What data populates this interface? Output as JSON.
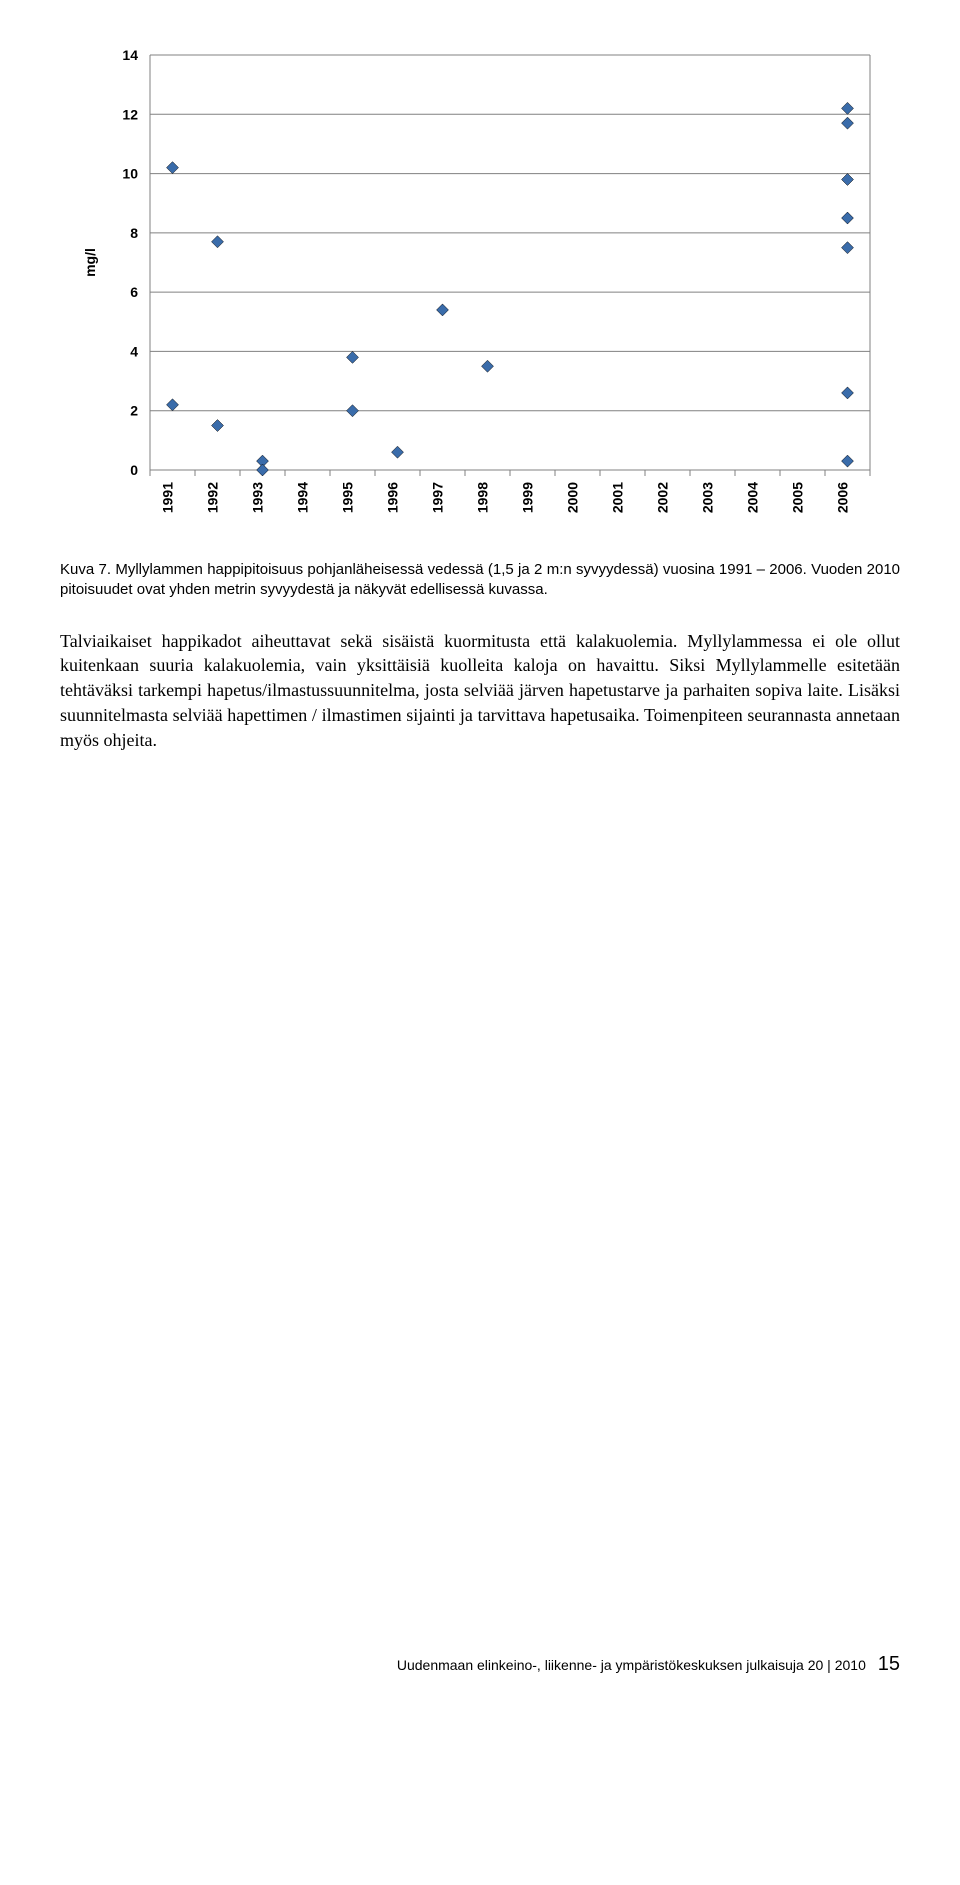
{
  "chart": {
    "type": "scatter",
    "ylabel": "mg/l",
    "ylabel_fontsize": 14,
    "ylabel_fontweight": "bold",
    "ylim": [
      0,
      14
    ],
    "ytick_step": 2,
    "categorical_x": true,
    "x_categories": [
      "1991",
      "1992",
      "1993",
      "1994",
      "1995",
      "1996",
      "1997",
      "1998",
      "1999",
      "2000",
      "2001",
      "2002",
      "2003",
      "2004",
      "2005",
      "2006"
    ],
    "tick_fontsize": 14,
    "tick_fontweight": "bold",
    "marker": {
      "shape": "diamond",
      "size": 12,
      "fill": "#3a6caa",
      "stroke": "#000000",
      "stroke_width": 0.5
    },
    "grid": {
      "show_horizontal": true,
      "color": "#808080",
      "width": 1
    },
    "axis_line_color": "#808080",
    "axis_line_width": 1,
    "plot_border_color": "#808080",
    "background_color": "#ffffff",
    "points": [
      {
        "x": "1991",
        "y": 10.2
      },
      {
        "x": "1991",
        "y": 2.2
      },
      {
        "x": "1992",
        "y": 7.7
      },
      {
        "x": "1992",
        "y": 1.5
      },
      {
        "x": "1993",
        "y": 0.3
      },
      {
        "x": "1993",
        "y": 0.0
      },
      {
        "x": "1995",
        "y": 3.8
      },
      {
        "x": "1995",
        "y": 2.0
      },
      {
        "x": "1996",
        "y": 0.6
      },
      {
        "x": "1997",
        "y": 5.4
      },
      {
        "x": "1998",
        "y": 3.5
      },
      {
        "x": "2006",
        "y": 12.2
      },
      {
        "x": "2006",
        "y": 11.7
      },
      {
        "x": "2006",
        "y": 9.8
      },
      {
        "x": "2006",
        "y": 8.5
      },
      {
        "x": "2006",
        "y": 7.5
      },
      {
        "x": "2006",
        "y": 2.6
      },
      {
        "x": "2006",
        "y": 0.3
      }
    ]
  },
  "caption": "Kuva 7. Myllylammen happipitoisuus pohjanläheisessä vedessä (1,5 ja 2 m:n syvyydessä) vuosina 1991 – 2006. Vuoden 2010 pitoisuudet ovat yhden metrin syvyydestä ja näkyvät edellisessä kuvassa.",
  "body": "Talviaikaiset happikadot aiheuttavat sekä sisäistä kuormitusta että kalakuolemia. Myllylammessa ei ole ollut kuitenkaan suuria kalakuolemia, vain yksittäisiä kuolleita kaloja on havaittu. Siksi Myllylammelle esitetään tehtäväksi tarkempi hapetus/ilmastussuunnitelma, josta selviää järven hapetustarve ja parhaiten sopiva laite. Lisäksi suunnitelmasta selviää hapettimen / ilmastimen sijainti ja tarvittava hapetusaika. Toimenpiteen seurannasta annetaan myös ohjeita.",
  "footer": {
    "text": "Uudenmaan elinkeino-, liikenne- ja ympäristökeskuksen julkaisuja 20 | 2010",
    "page": "15"
  }
}
